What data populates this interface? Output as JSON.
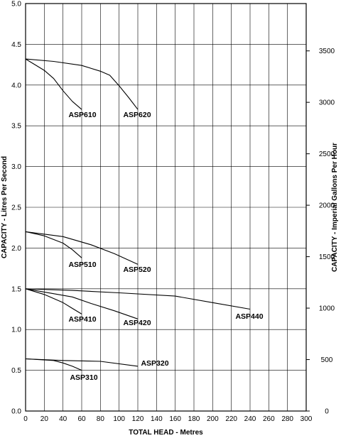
{
  "chart_data": {
    "type": "line",
    "title": "",
    "xlabel": "TOTAL HEAD - Metres",
    "ylabel": "CAPACITY - Litres Per Second",
    "y2label": "CAPACITY - Imperial Gallons Per Hour",
    "xlim": [
      0,
      300
    ],
    "ylim": [
      0,
      5.0
    ],
    "y2lim": [
      0,
      3960
    ],
    "grid": true,
    "x_ticks": [
      "0",
      "20",
      "40",
      "60",
      "80",
      "100",
      "120",
      "140",
      "160",
      "180",
      "200",
      "220",
      "240",
      "260",
      "280",
      "300"
    ],
    "y_ticks": [
      "0.0",
      "0.5",
      "1.0",
      "1.5",
      "2.0",
      "2.5",
      "3.0",
      "3.5",
      "4.0",
      "4.5",
      "5.0"
    ],
    "y2_ticks": [
      "0",
      "500",
      "1000",
      "1500",
      "2000",
      "2500",
      "3000",
      "3500"
    ],
    "series": [
      {
        "name": "ASP610",
        "x": [
          0,
          10,
          20,
          30,
          40,
          50,
          60
        ],
        "y": [
          4.32,
          4.25,
          4.18,
          4.08,
          3.93,
          3.8,
          3.7
        ]
      },
      {
        "name": "ASP620",
        "x": [
          0,
          30,
          60,
          80,
          90,
          100,
          110,
          120
        ],
        "y": [
          4.32,
          4.29,
          4.24,
          4.17,
          4.12,
          3.99,
          3.85,
          3.7
        ]
      },
      {
        "name": "ASP510",
        "x": [
          0,
          20,
          40,
          50,
          60
        ],
        "y": [
          2.2,
          2.15,
          2.06,
          1.98,
          1.88
        ]
      },
      {
        "name": "ASP520",
        "x": [
          0,
          40,
          70,
          95,
          120
        ],
        "y": [
          2.2,
          2.14,
          2.04,
          1.93,
          1.8
        ]
      },
      {
        "name": "ASP410",
        "x": [
          0,
          20,
          40,
          50,
          60
        ],
        "y": [
          1.5,
          1.43,
          1.33,
          1.26,
          1.19
        ]
      },
      {
        "name": "ASP420",
        "x": [
          0,
          50,
          70,
          95,
          120
        ],
        "y": [
          1.5,
          1.4,
          1.32,
          1.23,
          1.13
        ]
      },
      {
        "name": "ASP440",
        "x": [
          0,
          50,
          100,
          160,
          200,
          240
        ],
        "y": [
          1.5,
          1.48,
          1.45,
          1.41,
          1.33,
          1.25
        ]
      },
      {
        "name": "ASP310",
        "x": [
          0,
          30,
          40,
          50,
          60
        ],
        "y": [
          0.64,
          0.62,
          0.59,
          0.55,
          0.5
        ]
      },
      {
        "name": "ASP320",
        "x": [
          0,
          40,
          80,
          120
        ],
        "y": [
          0.64,
          0.62,
          0.61,
          0.55
        ]
      }
    ]
  }
}
